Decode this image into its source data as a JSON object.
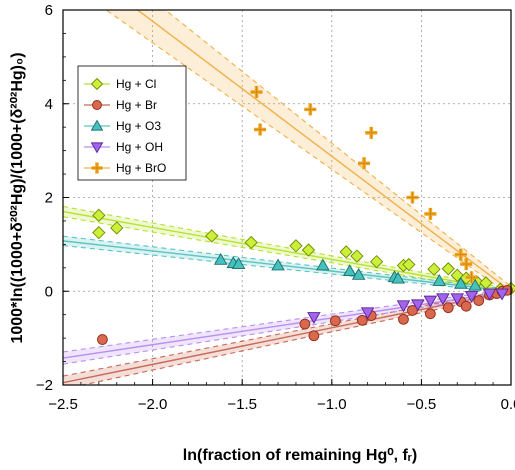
{
  "chart_data": {
    "type": "scatter",
    "xlabel": "ln(fraction of remaining Hg⁰, fᵣ)",
    "ylabel": "1000*ln((1000+δ²⁰²Hg)/(1000+(δ²⁰²Hg)₀)",
    "xlim": [
      -2.5,
      0.0
    ],
    "ylim": [
      -2,
      6
    ],
    "xticks": [
      -2.5,
      -2.0,
      -1.5,
      -1.0,
      -0.5,
      0.0
    ],
    "xtick_labels": [
      "−2.5",
      "−2.0",
      "−1.5",
      "−1.0",
      "−0.5",
      "0.0"
    ],
    "yticks": [
      -2,
      0,
      2,
      4,
      6
    ],
    "ytick_labels": [
      "−2",
      "0",
      "2",
      "4",
      "6"
    ],
    "grid": true,
    "legend_position": "top-left",
    "series": [
      {
        "name": "Hg + Cl",
        "marker": "diamond",
        "color": "#ccf03a",
        "stroke": "#6d8a00",
        "line_color": "#b8e22c",
        "fit": {
          "slope": -0.68,
          "intercept": 0.0
        },
        "ci_band": [
          0.05,
          0.11
        ],
        "points": [
          [
            -2.3,
            1.62
          ],
          [
            -2.3,
            1.25
          ],
          [
            -2.2,
            1.35
          ],
          [
            -1.67,
            1.18
          ],
          [
            -1.45,
            1.04
          ],
          [
            -1.2,
            0.97
          ],
          [
            -1.13,
            0.88
          ],
          [
            -0.92,
            0.84
          ],
          [
            -0.86,
            0.75
          ],
          [
            -0.75,
            0.63
          ],
          [
            -0.6,
            0.55
          ],
          [
            -0.57,
            0.57
          ],
          [
            -0.43,
            0.47
          ],
          [
            -0.35,
            0.48
          ],
          [
            -0.3,
            0.34
          ],
          [
            -0.25,
            0.28
          ],
          [
            -0.19,
            0.2
          ],
          [
            -0.14,
            0.18
          ],
          [
            -0.06,
            0.04
          ],
          [
            0.0,
            0.06
          ]
        ]
      },
      {
        "name": "Hg + Br",
        "marker": "circle",
        "color": "#d9684f",
        "stroke": "#8e2d17",
        "line_color": "#c96a55",
        "fit": {
          "slope": 0.78,
          "intercept": 0.0
        },
        "ci_band": [
          0.05,
          0.14
        ],
        "points": [
          [
            -2.28,
            -1.03
          ],
          [
            -1.15,
            -0.7
          ],
          [
            -1.1,
            -0.95
          ],
          [
            -0.98,
            -0.63
          ],
          [
            -0.83,
            -0.62
          ],
          [
            -0.78,
            -0.52
          ],
          [
            -0.6,
            -0.6
          ],
          [
            -0.55,
            -0.41
          ],
          [
            -0.45,
            -0.48
          ],
          [
            -0.35,
            -0.35
          ],
          [
            -0.28,
            -0.22
          ],
          [
            -0.25,
            -0.32
          ],
          [
            -0.18,
            -0.2
          ],
          [
            -0.12,
            -0.08
          ],
          [
            -0.08,
            -0.05
          ],
          [
            -0.05,
            0.0
          ],
          [
            -0.02,
            0.02
          ]
        ]
      },
      {
        "name": "Hg + O3",
        "marker": "triangle-up",
        "color": "#45c2be",
        "stroke": "#1c6e6c",
        "line_color": "#5bc4c2",
        "fit": {
          "slope": -0.43,
          "intercept": 0.0
        },
        "ci_band": [
          0.04,
          0.1
        ],
        "points": [
          [
            -1.62,
            0.67
          ],
          [
            -1.55,
            0.6
          ],
          [
            -1.52,
            0.58
          ],
          [
            -1.3,
            0.55
          ],
          [
            -1.05,
            0.55
          ],
          [
            -0.9,
            0.43
          ],
          [
            -0.85,
            0.35
          ],
          [
            -0.65,
            0.3
          ],
          [
            -0.63,
            0.27
          ],
          [
            -0.4,
            0.22
          ],
          [
            -0.28,
            0.16
          ],
          [
            -0.2,
            0.12
          ]
        ]
      },
      {
        "name": "Hg + OH",
        "marker": "triangle-down",
        "color": "#a265ea",
        "stroke": "#5a2299",
        "line_color": "#b98ff0",
        "fit": {
          "slope": 0.57,
          "intercept": 0.0
        },
        "ci_band": [
          0.05,
          0.13
        ],
        "points": [
          [
            -1.1,
            -0.55
          ],
          [
            -0.8,
            -0.45
          ],
          [
            -0.6,
            -0.3
          ],
          [
            -0.52,
            -0.28
          ],
          [
            -0.45,
            -0.2
          ],
          [
            -0.38,
            -0.15
          ],
          [
            -0.3,
            -0.15
          ],
          [
            -0.22,
            -0.1
          ],
          [
            -0.12,
            -0.05
          ],
          [
            -0.05,
            -0.05
          ]
        ]
      },
      {
        "name": "Hg + BrO",
        "marker": "cross",
        "color": "#f5a622",
        "stroke": "#8a5a00",
        "line_color": "#f0b04a",
        "fit": {
          "slope": -2.88,
          "intercept": 0.0
        },
        "ci_band": [
          0.1,
          0.55
        ],
        "points": [
          [
            -1.42,
            4.25
          ],
          [
            -1.4,
            3.45
          ],
          [
            -1.12,
            3.88
          ],
          [
            -0.78,
            3.38
          ],
          [
            -0.82,
            2.73
          ],
          [
            -0.55,
            2.0
          ],
          [
            -0.45,
            1.65
          ],
          [
            -0.28,
            0.78
          ],
          [
            -0.25,
            0.58
          ],
          [
            -0.22,
            0.3
          ]
        ]
      }
    ]
  }
}
